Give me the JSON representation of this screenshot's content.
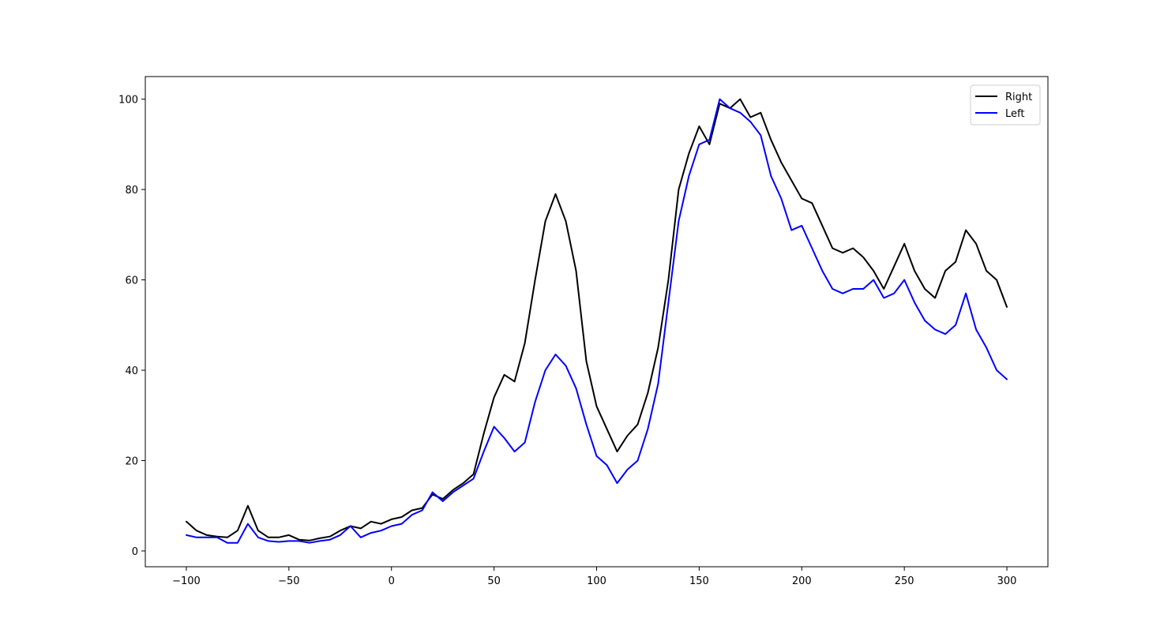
{
  "chart_data": {
    "type": "line",
    "title": "",
    "xlabel": "",
    "ylabel": "",
    "xlim": [
      -120,
      320
    ],
    "ylim": [
      -3.5,
      105
    ],
    "x_ticks": [
      -100,
      -50,
      0,
      50,
      100,
      150,
      200,
      250,
      300
    ],
    "y_ticks": [
      0,
      20,
      40,
      60,
      80,
      100
    ],
    "x_tick_labels": [
      "−100",
      "−50",
      "0",
      "50",
      "100",
      "150",
      "200",
      "250",
      "300"
    ],
    "y_tick_labels": [
      "0",
      "20",
      "40",
      "60",
      "80",
      "100"
    ],
    "grid": false,
    "legend_position": "upper right",
    "x": [
      -100,
      -95,
      -90,
      -85,
      -80,
      -75,
      -70,
      -65,
      -60,
      -55,
      -50,
      -45,
      -40,
      -35,
      -30,
      -25,
      -20,
      -15,
      -10,
      -5,
      0,
      5,
      10,
      15,
      20,
      25,
      30,
      35,
      40,
      45,
      50,
      55,
      60,
      65,
      70,
      75,
      80,
      85,
      90,
      95,
      100,
      105,
      110,
      115,
      120,
      125,
      130,
      135,
      140,
      145,
      150,
      155,
      160,
      165,
      170,
      175,
      180,
      185,
      190,
      195,
      200,
      205,
      210,
      215,
      220,
      225,
      230,
      235,
      240,
      245,
      250,
      255,
      260,
      265,
      270,
      275,
      280,
      285,
      290,
      295,
      300
    ],
    "series": [
      {
        "name": "Right",
        "color": "#000000",
        "values": [
          6.5,
          4.5,
          3.5,
          3.2,
          3.0,
          4.5,
          10.0,
          4.5,
          3.0,
          3.0,
          3.5,
          2.5,
          2.3,
          2.8,
          3.2,
          4.5,
          5.5,
          5.0,
          6.5,
          6.0,
          7.0,
          7.5,
          9.0,
          9.5,
          12.5,
          11.5,
          13.5,
          15.0,
          17.0,
          26.0,
          34.0,
          39.0,
          37.5,
          46.0,
          60.0,
          73.0,
          79.0,
          73.0,
          62.0,
          42.0,
          32.0,
          27.0,
          22.0,
          25.5,
          28.0,
          35.0,
          45.0,
          60.0,
          80.0,
          88.0,
          94.0,
          90.0,
          99.0,
          98.0,
          100.0,
          96.0,
          97.0,
          91.0,
          86.0,
          82.0,
          78.0,
          77.0,
          72.0,
          67.0,
          66.0,
          67.0,
          65.0,
          62.0,
          58.0,
          63.0,
          68.0,
          62.0,
          58.0,
          56.0,
          62.0,
          64.0,
          71.0,
          68.0,
          62.0,
          60.0,
          54.0
        ]
      },
      {
        "name": "Left",
        "color": "#0000ff",
        "values": [
          3.5,
          3.0,
          3.0,
          3.0,
          1.8,
          1.8,
          6.0,
          3.0,
          2.2,
          2.0,
          2.2,
          2.2,
          1.8,
          2.2,
          2.5,
          3.5,
          5.5,
          3.0,
          4.0,
          4.5,
          5.5,
          6.0,
          8.0,
          9.0,
          13.0,
          11.0,
          13.0,
          14.5,
          16.0,
          22.0,
          27.5,
          25.0,
          22.0,
          24.0,
          33.0,
          40.0,
          43.5,
          41.0,
          36.0,
          28.0,
          21.0,
          19.0,
          15.0,
          18.0,
          20.0,
          27.0,
          37.0,
          55.0,
          73.0,
          83.0,
          90.0,
          91.0,
          100.0,
          98.0,
          97.0,
          95.0,
          92.0,
          83.0,
          78.0,
          71.0,
          72.0,
          67.0,
          62.0,
          58.0,
          57.0,
          58.0,
          58.0,
          60.0,
          56.0,
          57.0,
          60.0,
          55.0,
          51.0,
          49.0,
          48.0,
          50.0,
          57.0,
          49.0,
          45.0,
          40.0,
          38.0
        ]
      }
    ]
  }
}
